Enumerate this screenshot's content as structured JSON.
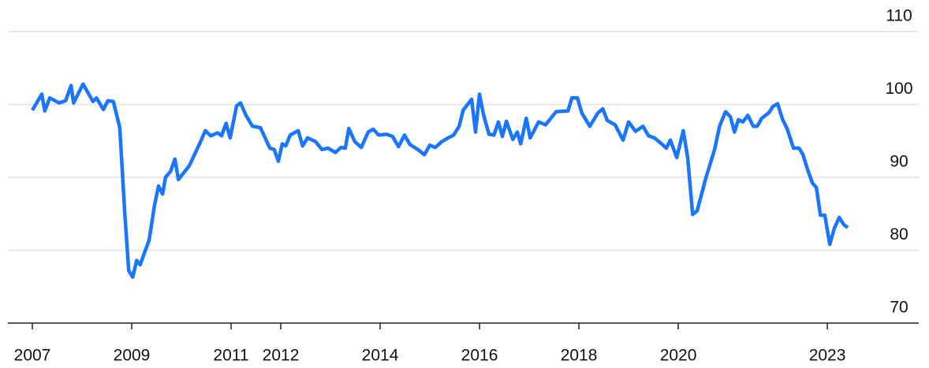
{
  "chart_data": {
    "type": "line",
    "x": [
      2007.0,
      2007.19,
      2007.25,
      2007.35,
      2007.54,
      2007.67,
      2007.78,
      2007.83,
      2008.02,
      2008.22,
      2008.29,
      2008.43,
      2008.52,
      2008.63,
      2008.76,
      2008.86,
      2008.94,
      2009.02,
      2009.1,
      2009.17,
      2009.35,
      2009.46,
      2009.54,
      2009.62,
      2009.68,
      2009.78,
      2009.87,
      2009.94,
      2010.16,
      2010.4,
      2010.48,
      2010.59,
      2010.73,
      2010.81,
      2010.9,
      2010.98,
      2011.11,
      2011.19,
      2011.3,
      2011.43,
      2011.59,
      2011.78,
      2011.87,
      2011.95,
      2012.03,
      2012.1,
      2012.19,
      2012.35,
      2012.44,
      2012.54,
      2012.7,
      2012.83,
      2012.95,
      2013.1,
      2013.21,
      2013.3,
      2013.37,
      2013.49,
      2013.62,
      2013.76,
      2013.86,
      2013.97,
      2014.13,
      2014.25,
      2014.37,
      2014.49,
      2014.6,
      2014.76,
      2014.89,
      2015.0,
      2015.11,
      2015.24,
      2015.37,
      2015.48,
      2015.59,
      2015.67,
      2015.84,
      2015.92,
      2016.0,
      2016.08,
      2016.19,
      2016.29,
      2016.38,
      2016.46,
      2016.54,
      2016.67,
      2016.76,
      2016.83,
      2016.94,
      2017.02,
      2017.19,
      2017.33,
      2017.54,
      2017.78,
      2017.86,
      2017.97,
      2018.06,
      2018.22,
      2018.38,
      2018.48,
      2018.57,
      2018.73,
      2018.89,
      2019.0,
      2019.14,
      2019.29,
      2019.4,
      2019.52,
      2019.68,
      2019.76,
      2019.84,
      2019.97,
      2020.1,
      2020.19,
      2020.29,
      2020.38,
      2020.56,
      2020.73,
      2020.83,
      2020.95,
      2021.05,
      2021.13,
      2021.21,
      2021.3,
      2021.4,
      2021.51,
      2021.59,
      2021.68,
      2021.83,
      2021.9,
      2022.0,
      2022.1,
      2022.19,
      2022.32,
      2022.43,
      2022.51,
      2022.6,
      2022.7,
      2022.78,
      2022.86,
      2022.95,
      2023.05,
      2023.14,
      2023.24,
      2023.33,
      2023.41
    ],
    "series": [
      {
        "color": "#1a75ff",
        "values": [
          99.2,
          101.4,
          99.1,
          100.9,
          100.2,
          100.5,
          102.6,
          100.2,
          102.8,
          100.4,
          100.9,
          99.3,
          100.5,
          100.4,
          96.8,
          85.1,
          77.2,
          76.3,
          78.6,
          78.0,
          81.4,
          86.2,
          88.8,
          87.7,
          90.0,
          90.8,
          92.5,
          89.7,
          91.6,
          95.1,
          96.4,
          95.7,
          96.1,
          95.7,
          97.4,
          95.4,
          99.8,
          100.2,
          98.5,
          97.0,
          96.8,
          94.0,
          93.8,
          92.2,
          94.6,
          94.3,
          95.8,
          96.4,
          94.3,
          95.4,
          94.9,
          93.8,
          94.0,
          93.4,
          94.1,
          94.0,
          96.7,
          94.9,
          94.1,
          96.2,
          96.6,
          95.8,
          95.9,
          95.6,
          94.2,
          95.8,
          94.5,
          93.8,
          93.1,
          94.4,
          94.1,
          94.9,
          95.4,
          95.8,
          97.0,
          99.2,
          100.7,
          96.2,
          101.4,
          98.6,
          95.9,
          95.8,
          97.6,
          95.6,
          97.7,
          95.2,
          96.2,
          94.6,
          98.1,
          95.4,
          97.6,
          97.2,
          99.0,
          99.1,
          100.9,
          100.9,
          98.8,
          97.0,
          98.8,
          99.4,
          97.8,
          97.2,
          95.1,
          97.6,
          96.3,
          97.0,
          95.7,
          95.4,
          94.5,
          94.0,
          95.1,
          92.7,
          96.4,
          92.7,
          84.9,
          85.4,
          90.0,
          93.8,
          97.0,
          99.0,
          98.3,
          96.2,
          97.9,
          97.6,
          98.5,
          97.0,
          97.0,
          98.1,
          98.9,
          99.7,
          100.1,
          97.9,
          96.7,
          94.0,
          94.0,
          93.1,
          91.1,
          89.2,
          88.6,
          84.8,
          84.8,
          80.8,
          83.0,
          84.5,
          83.5,
          83.1
        ]
      }
    ],
    "xlim": [
      2006.5,
      2024.84
    ],
    "xticks": [
      2007,
      2009,
      2011,
      2012,
      2014,
      2016,
      2018,
      2020,
      2023
    ],
    "ylim": [
      70,
      112
    ],
    "yticks": [
      70,
      80,
      90,
      100,
      110
    ],
    "grid": true
  }
}
